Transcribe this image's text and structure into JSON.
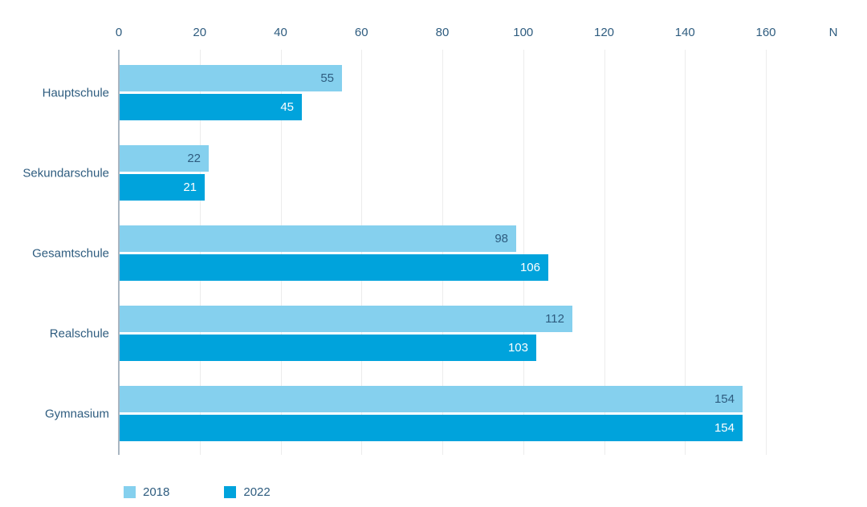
{
  "chart_data": {
    "type": "bar",
    "orientation": "horizontal",
    "title": "",
    "categories": [
      "Hauptschule",
      "Sekundarschule",
      "Gesamtschule",
      "Realschule",
      "Gymnasium"
    ],
    "series": [
      {
        "name": "2018",
        "color": "#85D0EE",
        "value_label_color": "#2E5C7F",
        "values": [
          55,
          22,
          98,
          112,
          154
        ]
      },
      {
        "name": "2022",
        "color": "#00A3DC",
        "value_label_color": "#FFFFFF",
        "values": [
          45,
          21,
          106,
          103,
          154
        ]
      }
    ],
    "xlim": [
      0,
      160
    ],
    "x_ticks": [
      0,
      20,
      40,
      60,
      80,
      100,
      120,
      140,
      160
    ],
    "axis_unit_label": "N",
    "axis_position": "top",
    "grid": "vertical",
    "legend_position": "bottom"
  },
  "colors": {
    "background": "#FFFFFF",
    "gridline": "#ECECEC",
    "axis_line": "#A9B6C2",
    "text": "#2E5C7F"
  }
}
